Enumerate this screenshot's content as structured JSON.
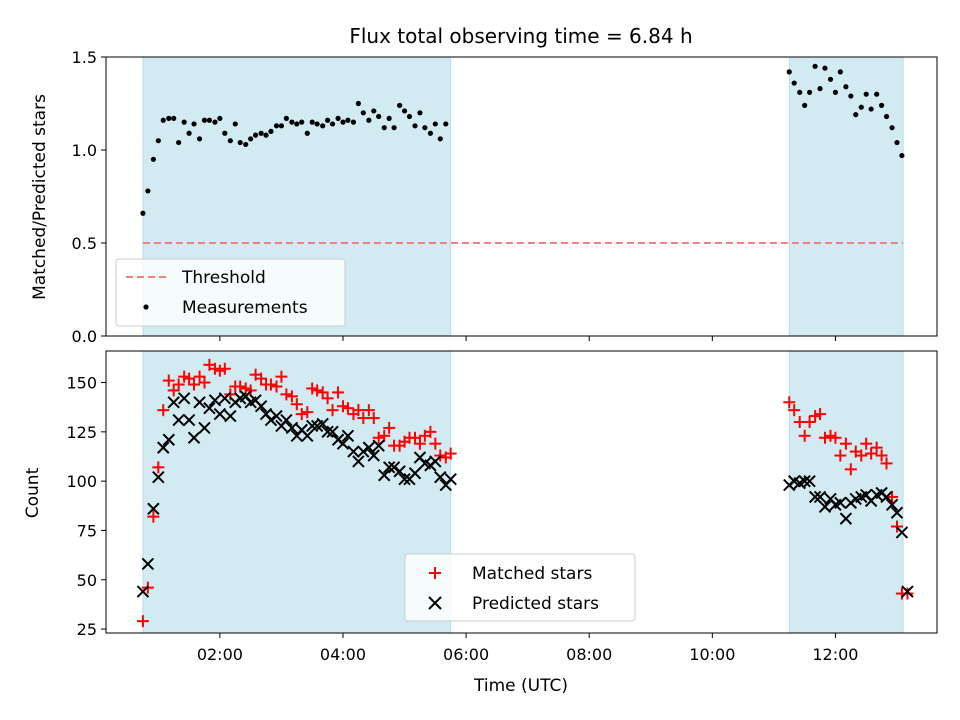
{
  "chart_data": [
    {
      "type": "scatter",
      "title": "Flux total observing time = 6.84 h",
      "ylabel": "Matched/Predicted stars",
      "xlabel": "",
      "xlim_hours": [
        0.15,
        13.65
      ],
      "ylim": [
        0,
        1.5
      ],
      "yticks": [
        0.0,
        0.5,
        1.0,
        1.5
      ],
      "ytick_labels": [
        "0.0",
        "0.5",
        "1.0",
        "1.5"
      ],
      "colors": {
        "threshold": "#f08080",
        "measurements": "#000000",
        "span": "#add8e6"
      },
      "spans_hours": [
        [
          0.75,
          5.75
        ],
        [
          11.25,
          13.1
        ]
      ],
      "threshold": {
        "value": 0.5,
        "label": "Threshold"
      },
      "measurements_label": "Measurements",
      "legend_position": "lower-left",
      "series": [
        {
          "name": "Measurements",
          "x": [
            0.75,
            0.83,
            0.92,
            1.0,
            1.08,
            1.17,
            1.25,
            1.33,
            1.42,
            1.5,
            1.58,
            1.67,
            1.75,
            1.83,
            1.92,
            2.0,
            2.08,
            2.17,
            2.25,
            2.33,
            2.42,
            2.5,
            2.58,
            2.67,
            2.75,
            2.83,
            2.92,
            3.0,
            3.08,
            3.17,
            3.25,
            3.33,
            3.42,
            3.5,
            3.58,
            3.67,
            3.75,
            3.83,
            3.92,
            4.0,
            4.08,
            4.17,
            4.25,
            4.33,
            4.42,
            4.5,
            4.58,
            4.67,
            4.75,
            4.83,
            4.92,
            5.0,
            5.08,
            5.17,
            5.25,
            5.33,
            5.42,
            5.5,
            5.58,
            5.67,
            11.25,
            11.33,
            11.42,
            11.5,
            11.58,
            11.67,
            11.75,
            11.83,
            11.92,
            12.0,
            12.08,
            12.17,
            12.25,
            12.33,
            12.42,
            12.5,
            12.58,
            12.67,
            12.75,
            12.83,
            12.92,
            13.0,
            13.08
          ],
          "y": [
            0.66,
            0.78,
            0.95,
            1.05,
            1.16,
            1.17,
            1.17,
            1.04,
            1.15,
            1.09,
            1.14,
            1.06,
            1.16,
            1.16,
            1.15,
            1.17,
            1.09,
            1.05,
            1.14,
            1.04,
            1.03,
            1.06,
            1.08,
            1.09,
            1.08,
            1.1,
            1.13,
            1.13,
            1.17,
            1.15,
            1.14,
            1.15,
            1.09,
            1.15,
            1.14,
            1.13,
            1.16,
            1.14,
            1.17,
            1.15,
            1.16,
            1.15,
            1.25,
            1.2,
            1.16,
            1.21,
            1.18,
            1.12,
            1.17,
            1.12,
            1.24,
            1.21,
            1.18,
            1.13,
            1.2,
            1.12,
            1.09,
            1.14,
            1.06,
            1.14,
            1.42,
            1.36,
            1.31,
            1.24,
            1.31,
            1.45,
            1.33,
            1.44,
            1.38,
            1.31,
            1.42,
            1.34,
            1.29,
            1.19,
            1.23,
            1.3,
            1.22,
            1.3,
            1.24,
            1.18,
            1.12,
            1.04,
            0.97
          ]
        }
      ]
    },
    {
      "type": "scatter",
      "title": "",
      "ylabel": "Count",
      "xlabel": "Time (UTC)",
      "xlim_hours": [
        0.15,
        13.65
      ],
      "ylim": [
        23,
        166
      ],
      "xticks_hours": [
        2,
        4,
        6,
        8,
        10,
        12
      ],
      "xtick_labels": [
        "02:00",
        "04:00",
        "06:00",
        "08:00",
        "10:00",
        "12:00"
      ],
      "yticks": [
        25,
        50,
        75,
        100,
        125,
        150
      ],
      "ytick_labels": [
        "25",
        "50",
        "75",
        "100",
        "125",
        "150"
      ],
      "colors": {
        "matched": "#ff0000",
        "predicted": "#000000",
        "span": "#add8e6"
      },
      "spans_hours": [
        [
          0.75,
          5.75
        ],
        [
          11.25,
          13.1
        ]
      ],
      "legend_position": "lower-center",
      "series": [
        {
          "name": "Matched stars",
          "marker": "plus",
          "x": [
            0.75,
            0.83,
            0.92,
            1.0,
            1.08,
            1.17,
            1.25,
            1.33,
            1.42,
            1.5,
            1.58,
            1.67,
            1.75,
            1.83,
            1.92,
            2.0,
            2.08,
            2.17,
            2.25,
            2.33,
            2.42,
            2.5,
            2.58,
            2.67,
            2.75,
            2.83,
            2.92,
            3.0,
            3.08,
            3.17,
            3.25,
            3.33,
            3.42,
            3.5,
            3.58,
            3.67,
            3.75,
            3.83,
            3.92,
            4.0,
            4.08,
            4.17,
            4.25,
            4.33,
            4.42,
            4.5,
            4.58,
            4.67,
            4.75,
            4.83,
            4.92,
            5.0,
            5.08,
            5.17,
            5.25,
            5.33,
            5.42,
            5.5,
            5.58,
            5.67,
            5.75,
            11.25,
            11.33,
            11.42,
            11.5,
            11.58,
            11.67,
            11.75,
            11.83,
            11.92,
            12.0,
            12.08,
            12.17,
            12.25,
            12.33,
            12.42,
            12.5,
            12.58,
            12.67,
            12.75,
            12.83,
            12.92,
            13.0,
            13.08,
            13.17
          ],
          "y": [
            29,
            46,
            82,
            107,
            136,
            151,
            146,
            149,
            153,
            152,
            149,
            153,
            150,
            159,
            157,
            156,
            157,
            144,
            148,
            148,
            147,
            146,
            154,
            152,
            149,
            149,
            148,
            153,
            144,
            143,
            139,
            134,
            135,
            147,
            146,
            145,
            142,
            136,
            145,
            138,
            137,
            134,
            136,
            132,
            136,
            132,
            122,
            123,
            127,
            118,
            118,
            120,
            122,
            122,
            119,
            123,
            125,
            119,
            113,
            112,
            114,
            140,
            136,
            130,
            123,
            130,
            133,
            134,
            122,
            123,
            122,
            113,
            119,
            106,
            115,
            113,
            119,
            114,
            117,
            113,
            109,
            92,
            77,
            43,
            43
          ]
        },
        {
          "name": "Predicted stars",
          "marker": "x",
          "x": [
            0.75,
            0.83,
            0.92,
            1.0,
            1.08,
            1.17,
            1.25,
            1.33,
            1.42,
            1.5,
            1.58,
            1.67,
            1.75,
            1.83,
            1.92,
            2.0,
            2.08,
            2.17,
            2.25,
            2.33,
            2.42,
            2.5,
            2.58,
            2.67,
            2.75,
            2.83,
            2.92,
            3.0,
            3.08,
            3.17,
            3.25,
            3.33,
            3.42,
            3.5,
            3.58,
            3.67,
            3.75,
            3.83,
            3.92,
            4.0,
            4.08,
            4.17,
            4.25,
            4.33,
            4.42,
            4.5,
            4.58,
            4.67,
            4.75,
            4.83,
            4.92,
            5.0,
            5.08,
            5.17,
            5.25,
            5.33,
            5.42,
            5.5,
            5.58,
            5.67,
            5.75,
            11.25,
            11.33,
            11.42,
            11.5,
            11.58,
            11.67,
            11.75,
            11.83,
            11.92,
            12.0,
            12.08,
            12.17,
            12.25,
            12.33,
            12.42,
            12.5,
            12.58,
            12.67,
            12.75,
            12.83,
            12.92,
            13.0,
            13.08,
            13.17
          ],
          "y": [
            44,
            58,
            86,
            102,
            117,
            121,
            140,
            131,
            142,
            131,
            122,
            140,
            127,
            137,
            141,
            134,
            142,
            133,
            140,
            142,
            143,
            140,
            141,
            138,
            134,
            131,
            133,
            128,
            131,
            127,
            123,
            126,
            123,
            128,
            128,
            129,
            125,
            125,
            121,
            119,
            123,
            115,
            110,
            115,
            117,
            113,
            118,
            103,
            107,
            107,
            105,
            101,
            101,
            104,
            112,
            109,
            108,
            110,
            102,
            98,
            101,
            98,
            100,
            99,
            100,
            100,
            92,
            92,
            87,
            91,
            88,
            89,
            81,
            89,
            91,
            92,
            93,
            90,
            93,
            94,
            92,
            88,
            84,
            74,
            44
          ]
        }
      ]
    }
  ]
}
